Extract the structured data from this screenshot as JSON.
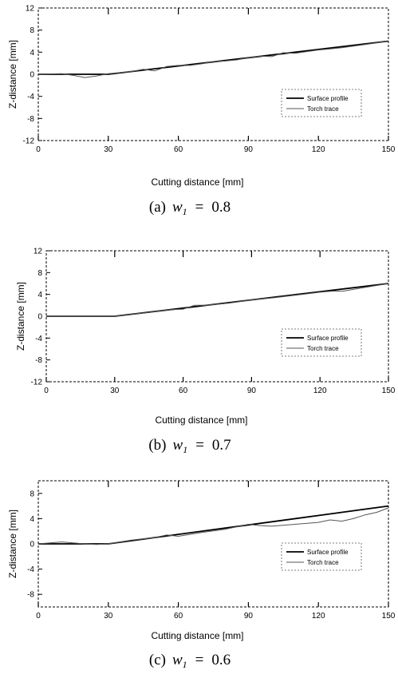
{
  "chart_data": [
    {
      "type": "line",
      "caption": {
        "letter": "(a)",
        "var": "w",
        "sub": "1",
        "value": "0.8"
      },
      "xlabel": "Cutting distance [mm]",
      "ylabel": "Z-distance [mm]",
      "xlim": [
        0,
        150
      ],
      "ylim": [
        -12,
        12
      ],
      "xticks": [
        0,
        30,
        60,
        90,
        120,
        150
      ],
      "yticks": [
        12,
        8,
        4,
        0,
        -4,
        -8,
        -12
      ],
      "legend": "right",
      "series": [
        {
          "name": "Surface profile",
          "color": "#000000",
          "x": [
            0,
            30,
            60,
            90,
            120,
            150
          ],
          "y": [
            0,
            0,
            1.5,
            3.0,
            4.5,
            6.0
          ]
        },
        {
          "name": "Torch trace",
          "color": "#555555",
          "x": [
            0,
            10,
            15,
            20,
            25,
            30,
            35,
            40,
            45,
            50,
            55,
            60,
            65,
            70,
            75,
            80,
            85,
            90,
            95,
            100,
            105,
            110,
            115,
            120,
            125,
            130,
            135,
            140,
            145,
            150
          ],
          "y": [
            0,
            0.1,
            -0.2,
            -0.6,
            -0.3,
            0.1,
            0.3,
            0.5,
            0.9,
            0.6,
            1.4,
            1.6,
            1.6,
            1.9,
            2.3,
            2.4,
            2.6,
            3.0,
            3.3,
            3.2,
            3.9,
            3.8,
            4.1,
            4.4,
            4.6,
            4.8,
            5.1,
            5.4,
            5.7,
            6.0
          ]
        }
      ]
    },
    {
      "type": "line",
      "caption": {
        "letter": "(b)",
        "var": "w",
        "sub": "1",
        "value": "0.7"
      },
      "xlabel": "Cutting distance [mm]",
      "ylabel": "Z-distance [mm]",
      "xlim": [
        0,
        150
      ],
      "ylim": [
        -12,
        12
      ],
      "xticks": [
        0,
        30,
        60,
        90,
        120,
        150
      ],
      "yticks": [
        12,
        8,
        4,
        0,
        -4,
        -8,
        -12
      ],
      "legend": "right",
      "series": [
        {
          "name": "Surface profile",
          "color": "#000000",
          "x": [
            0,
            30,
            60,
            90,
            120,
            150
          ],
          "y": [
            0,
            0,
            1.5,
            3.0,
            4.5,
            6.0
          ]
        },
        {
          "name": "Torch trace",
          "color": "#555555",
          "x": [
            0,
            10,
            20,
            30,
            35,
            40,
            45,
            50,
            55,
            60,
            65,
            70,
            75,
            80,
            90,
            100,
            110,
            120,
            125,
            130,
            140,
            150
          ],
          "y": [
            0,
            0,
            0,
            0,
            0.2,
            0.5,
            0.7,
            1.0,
            1.2,
            1.3,
            2.0,
            2.0,
            2.2,
            2.4,
            3.0,
            3.4,
            3.9,
            4.4,
            4.6,
            4.6,
            5.3,
            6.0
          ]
        }
      ]
    },
    {
      "type": "line",
      "caption": {
        "letter": "(c)",
        "var": "w",
        "sub": "1",
        "value": "0.6"
      },
      "xlabel": "Cutting distance [mm]",
      "ylabel": "Z-distance [mm]",
      "xlim": [
        0,
        150
      ],
      "ylim": [
        -10,
        10
      ],
      "xticks": [
        0,
        30,
        60,
        90,
        120,
        150
      ],
      "yticks": [
        8,
        4,
        0,
        -4,
        -8
      ],
      "legend": "right",
      "series": [
        {
          "name": "Surface profile",
          "color": "#000000",
          "x": [
            0,
            30,
            60,
            90,
            120,
            150
          ],
          "y": [
            0,
            0,
            1.5,
            3.0,
            4.5,
            6.0
          ]
        },
        {
          "name": "Torch trace",
          "color": "#555555",
          "x": [
            0,
            10,
            20,
            25,
            30,
            40,
            50,
            55,
            60,
            70,
            80,
            90,
            95,
            100,
            110,
            120,
            125,
            130,
            135,
            140,
            145,
            150
          ],
          "y": [
            0,
            0.3,
            0,
            -0.1,
            0,
            0.6,
            1.0,
            1.4,
            1.2,
            1.8,
            2.3,
            3.1,
            2.9,
            2.8,
            3.1,
            3.4,
            3.8,
            3.6,
            4.0,
            4.6,
            5.0,
            5.7
          ]
        }
      ]
    }
  ]
}
